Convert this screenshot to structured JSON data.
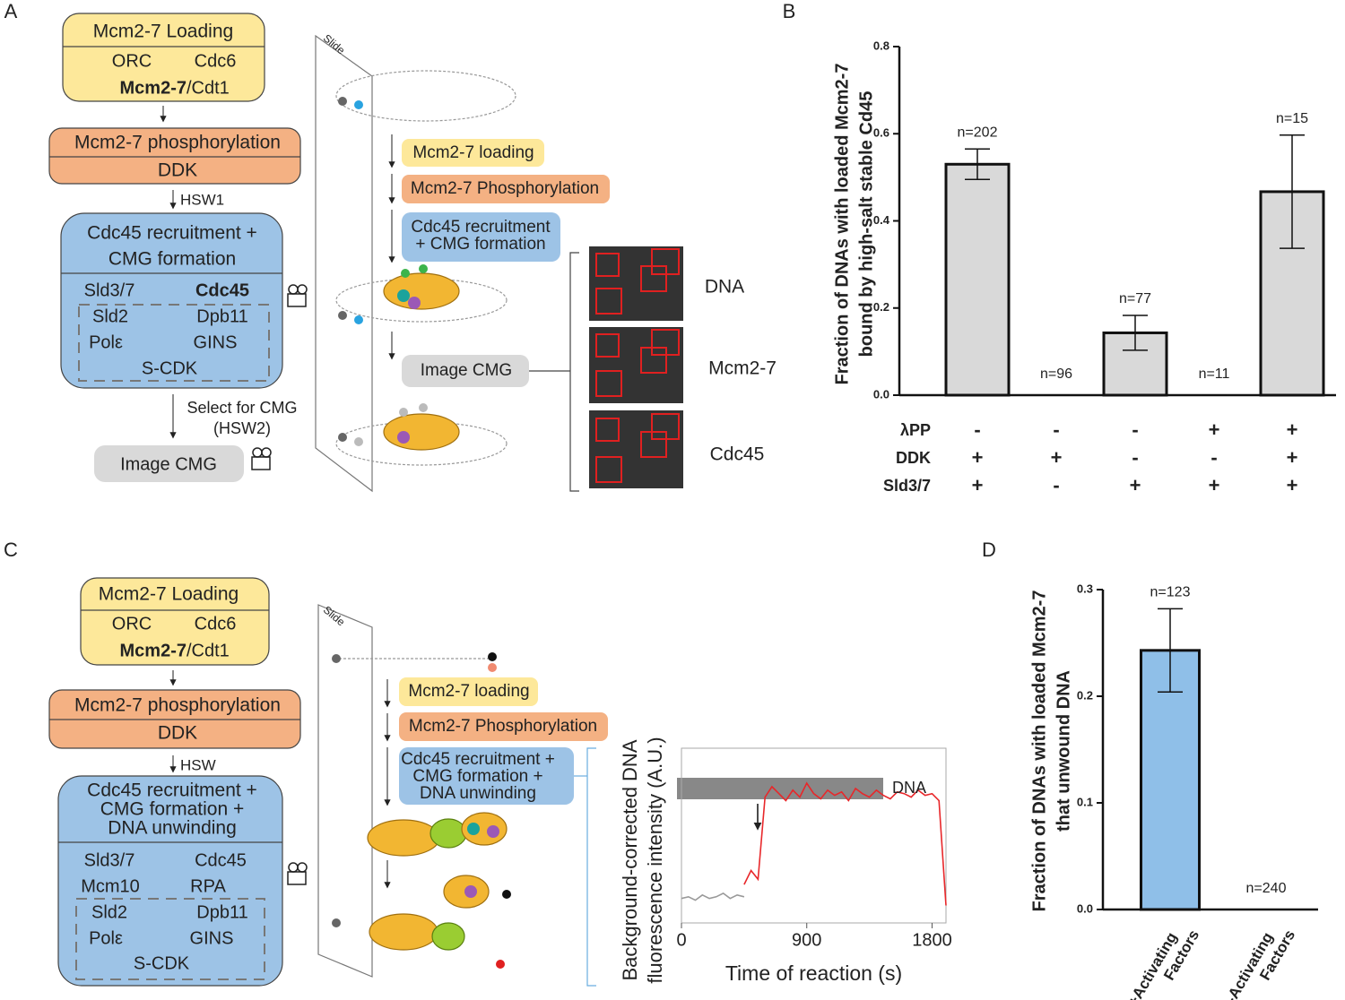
{
  "panels": {
    "A": {
      "letter": "A",
      "flow": {
        "box1": {
          "title": "Mcm2-7 Loading",
          "items": [
            "ORC",
            "Cdc6",
            "Mcm2-7",
            "/Cdt1"
          ]
        },
        "box2": {
          "title": "Mcm2-7 phosphorylation",
          "item": "DDK"
        },
        "step": "HSW1",
        "box3": {
          "title": [
            "Cdc45 recruitment +",
            "CMG formation"
          ],
          "items": [
            "Sld3/7",
            "Cdc45",
            "Sld2",
            "Dpb11",
            "Polε",
            "GINS",
            "S-CDK"
          ]
        },
        "select": [
          "Select for CMG",
          "(HSW2)"
        ],
        "image": "Image CMG"
      },
      "slide": {
        "label": "Slide",
        "steps": [
          "Mcm2-7 loading",
          "Mcm2-7 Phosphorylation"
        ],
        "step3": [
          "Cdc45 recruitment",
          "+ CMG  formation"
        ],
        "image": "Image CMG",
        "channels": [
          "DNA",
          "Mcm2-7",
          "Cdc45"
        ]
      }
    },
    "B": {
      "letter": "B"
    },
    "C": {
      "letter": "C",
      "flow": {
        "box1": {
          "title": "Mcm2-7 Loading",
          "items": [
            "ORC",
            "Cdc6",
            "Mcm2-7",
            "/Cdt1"
          ]
        },
        "box2": {
          "title": "Mcm2-7 phosphorylation",
          "item": "DDK"
        },
        "step": "HSW",
        "box3": {
          "title": [
            "Cdc45 recruitment +",
            "CMG formation +",
            "DNA unwinding"
          ],
          "items": [
            "Sld3/7",
            "Cdc45",
            "Mcm10",
            "RPA",
            "Sld2",
            "Dpb11",
            "Polε",
            "GINS",
            "S-CDK"
          ]
        }
      },
      "slide": {
        "label": "Slide",
        "steps": [
          "Mcm2-7 loading",
          "Mcm2-7 Phosphorylation"
        ],
        "step3": [
          "Cdc45 recruitment +",
          "CMG  formation +",
          "DNA unwinding"
        ]
      }
    },
    "D": {
      "letter": "D"
    }
  },
  "chart_data": [
    {
      "type": "bar",
      "y_label": [
        "Fraction of DNAs with loaded Mcm2-7",
        "bound by high-salt stable Cd45"
      ],
      "categories": [
        null,
        null,
        null,
        null,
        null
      ],
      "values": [
        0.53,
        0,
        0.143,
        0,
        0.467
      ],
      "errors": [
        0.035,
        0,
        0.04,
        0,
        0.13
      ],
      "annotations": [
        "n=202",
        "n=96",
        "n=77",
        "n=11",
        "n=15"
      ],
      "color": "#d9d9d9",
      "ylim": [
        0,
        0.8
      ],
      "yticks": [
        {
          "value": 0,
          "label": "0.0"
        },
        0.2,
        0.4,
        0.6,
        0.8
      ],
      "conditions": [
        {
          "label": "λPP",
          "color": "#222222",
          "values": [
            "-",
            "-",
            "-",
            "+",
            "+"
          ]
        },
        {
          "label": "DDK",
          "color": "#f0a060",
          "values": [
            "+",
            "+",
            "-",
            "-",
            "+"
          ]
        },
        {
          "label": "Sld3/7",
          "color": "#4a9ad8",
          "values": [
            "+",
            "-",
            "+",
            "+",
            "+"
          ]
        }
      ]
    },
    {
      "type": "line",
      "y_label": [
        "Background-corrected DNA",
        "fluorescence intensity (A.U.)"
      ],
      "x_label": "Time of reaction (s)",
      "annotation": "DNA",
      "x": [
        0,
        50,
        100,
        150,
        200,
        250,
        300,
        350,
        400,
        450,
        500,
        550,
        600,
        650,
        700,
        750,
        800,
        850,
        900,
        950,
        1000,
        1050,
        1100,
        1150,
        1200,
        1250,
        1300,
        1350,
        1400,
        1450,
        1500,
        1550,
        1600,
        1650,
        1700,
        1750,
        1800,
        1850,
        1900
      ],
      "series": [
        {
          "color": "#999999",
          "values": [
            14,
            15,
            13,
            16,
            14,
            15,
            17,
            14,
            16,
            15,
            null,
            null,
            null,
            null,
            null,
            null,
            null,
            null,
            null,
            null,
            null,
            null,
            null,
            null,
            null,
            null,
            null,
            null,
            null,
            null,
            null,
            null,
            null,
            null,
            null,
            null,
            null,
            null,
            null
          ]
        },
        {
          "color": "#e8272a",
          "values": [
            null,
            null,
            null,
            null,
            null,
            null,
            null,
            null,
            null,
            22,
            30,
            25,
            72,
            78,
            74,
            70,
            76,
            72,
            80,
            74,
            71,
            76,
            73,
            75,
            70,
            77,
            74,
            72,
            76,
            73,
            71,
            75,
            74,
            72,
            76,
            73,
            74,
            70,
            10
          ]
        }
      ],
      "xlim": [
        0,
        1900
      ],
      "xticks": [
        0,
        900,
        1800
      ],
      "ylim": [
        0,
        100
      ]
    },
    {
      "type": "bar",
      "y_label": [
        "Fraction of DNAs with loaded Mcm2-7",
        "that unwound DNA"
      ],
      "categories": [
        "+Activating Factors",
        "-Activating Factors"
      ],
      "values": [
        0.243,
        0
      ],
      "errors": [
        0.039,
        0
      ],
      "annotations": [
        "n=123",
        "n=240"
      ],
      "color": "#8fbfe8",
      "ylim": [
        0,
        0.3
      ],
      "yticks": [
        {
          "value": 0,
          "label": "0.0"
        },
        0.1,
        0.2,
        0.3
      ]
    }
  ]
}
